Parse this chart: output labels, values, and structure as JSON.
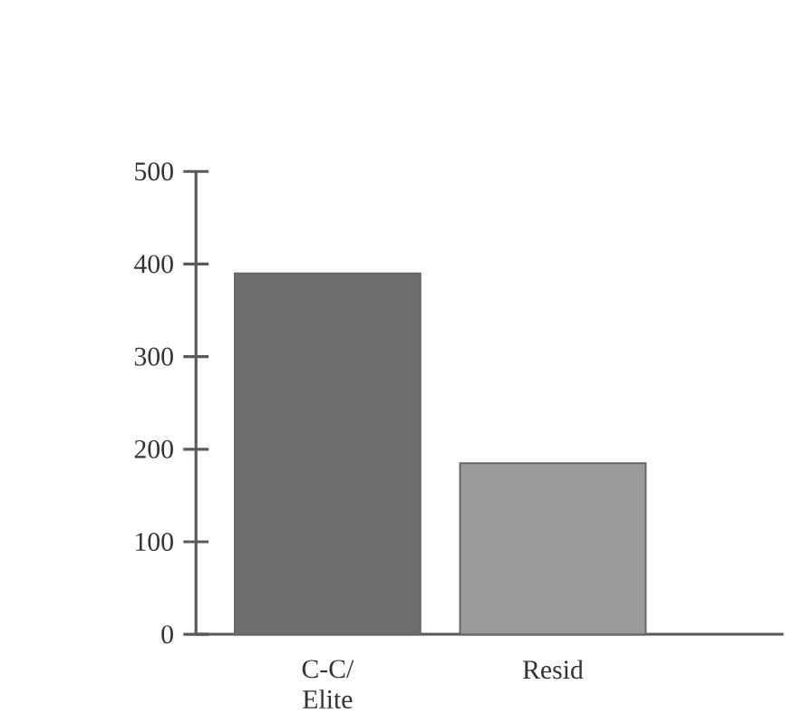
{
  "chart_data": {
    "type": "bar",
    "categories": [
      "C-C/ Elite",
      "Resid"
    ],
    "values": [
      390,
      185
    ],
    "colors": [
      "#6e6e6e",
      "#9a9a9a"
    ],
    "ylim": [
      0,
      500
    ],
    "yticks": [
      0,
      100,
      200,
      300,
      400,
      500
    ],
    "grid": false
  }
}
